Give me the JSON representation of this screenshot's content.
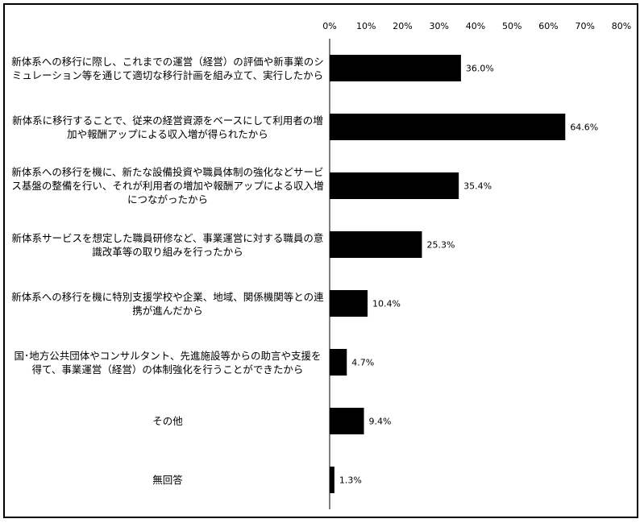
{
  "chart_data": {
    "type": "bar",
    "orientation": "horizontal",
    "categories": [
      "新体系への移行に際し、これまでの運営（経営）の評価や新事業のシミュレーション等を通じて適切な移行計画を組み立て、実行したから",
      "新体系に移行することで、従来の経営資源をベースにして利用者の増加や報酬アップによる収入増が得られたから",
      "新体系への移行を機に、新たな設備投資や職員体制の強化などサービス基盤の整備を行い、それが利用者の増加や報酬アップによる収入増につながったから",
      "新体系サービスを想定した職員研修など、事業運営に対する職員の意識改革等の取り組みを行ったから",
      "新体系への移行を機に特別支援学校や企業、地域、関係機関等との連携が進んだから",
      "国･地方公共団体やコンサルタント、先進施設等からの助言や支援を得て、事業運営（経営）の体制強化を行うことができたから",
      "その他",
      "無回答"
    ],
    "values": [
      36.0,
      64.6,
      35.4,
      25.3,
      10.4,
      4.7,
      9.4,
      1.3
    ],
    "value_labels": [
      "36.0%",
      "64.6%",
      "35.4%",
      "25.3%",
      "10.4%",
      "4.7%",
      "9.4%",
      "1.3%"
    ],
    "xlim": [
      0,
      80
    ],
    "xticks": [
      "0%",
      "10%",
      "20%",
      "30%",
      "40%",
      "50%",
      "60%",
      "70%",
      "80%"
    ],
    "axis_position": "top",
    "grid": false,
    "bar_color": "#000000"
  }
}
